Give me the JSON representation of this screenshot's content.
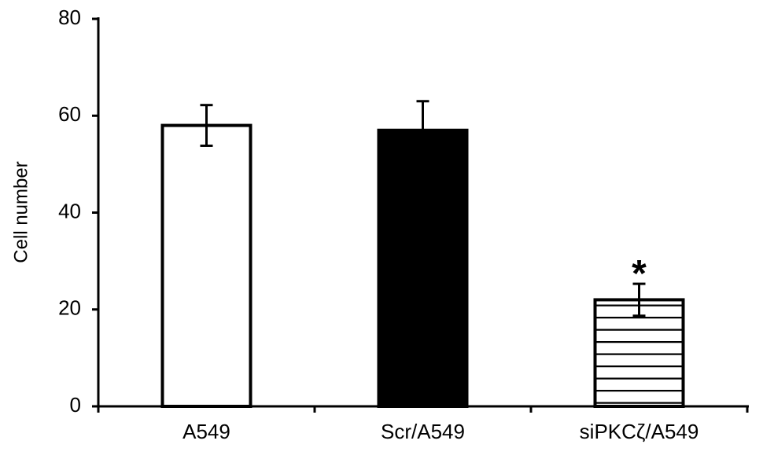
{
  "chart_data": {
    "type": "bar",
    "y_label": "Cell number",
    "categories": [
      "A549",
      "Scr/A549",
      "siPKCζ/A549"
    ],
    "values": [
      58,
      57,
      22
    ],
    "errors": [
      4.2,
      6,
      3.3
    ],
    "fills": [
      "white",
      "black",
      "horizontal-lines"
    ],
    "color": "#000000",
    "ylim": [
      0,
      80
    ],
    "yticks": [
      0,
      20,
      40,
      60,
      80
    ],
    "grid": false,
    "annotations": [
      {
        "category": "siPKCζ/A549",
        "text": "*"
      }
    ]
  }
}
